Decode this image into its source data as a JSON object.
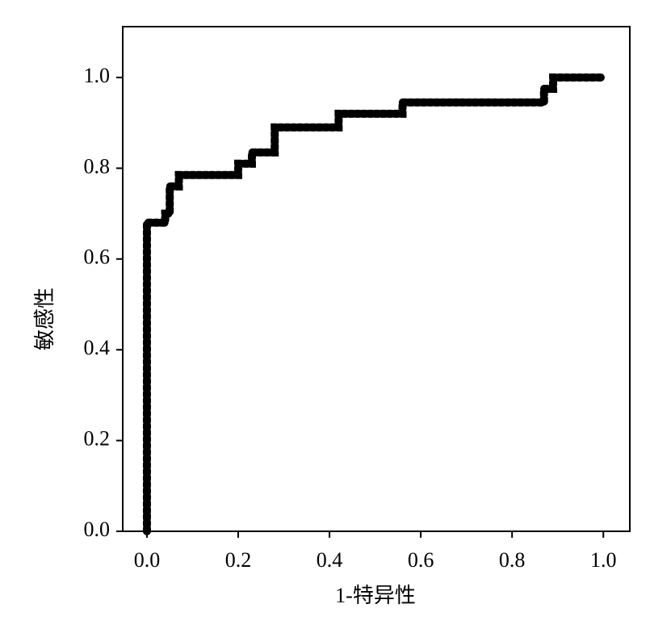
{
  "chart_data": {
    "type": "line",
    "x_label": "1-特异性",
    "y_label": "敏感性",
    "x": [
      0,
      0,
      0.04,
      0.04,
      0.05,
      0.05,
      0.07,
      0.07,
      0.2,
      0.2,
      0.23,
      0.23,
      0.28,
      0.28,
      0.42,
      0.42,
      0.56,
      0.56,
      0.87,
      0.87,
      0.89,
      0.89,
      1.0
    ],
    "series": [
      {
        "color": "#000000",
        "values": [
          0,
          0.68,
          0.68,
          0.7,
          0.7,
          0.76,
          0.76,
          0.785,
          0.785,
          0.81,
          0.81,
          0.835,
          0.835,
          0.89,
          0.89,
          0.92,
          0.92,
          0.945,
          0.945,
          0.975,
          0.975,
          1.0,
          1.0
        ]
      }
    ],
    "xlim": [
      -0.053,
      1.058
    ],
    "ylim": [
      0,
      1.112
    ],
    "xticks": [
      {
        "value": 0,
        "label": "0.0"
      },
      0.2,
      0.4,
      0.6,
      0.8,
      {
        "value": 1,
        "label": "1.0"
      }
    ],
    "yticks": [
      {
        "value": 0,
        "label": "0.0"
      },
      0.2,
      0.4,
      0.6,
      0.8,
      {
        "value": 1,
        "label": "1.0"
      }
    ],
    "grid": false
  }
}
